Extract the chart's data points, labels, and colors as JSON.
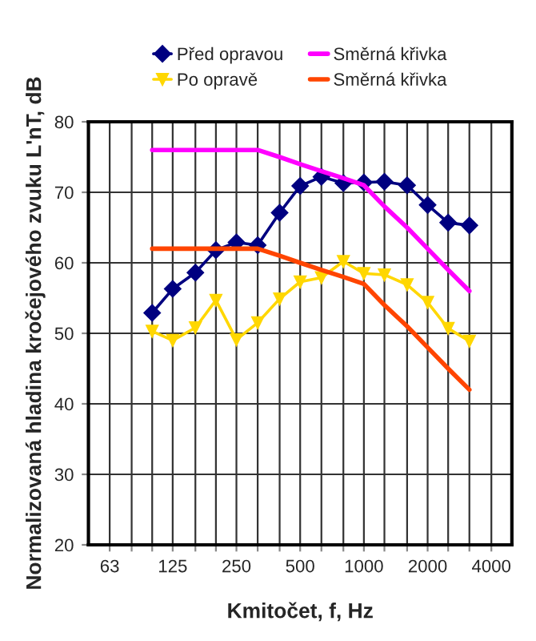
{
  "chart_data": {
    "type": "line",
    "xlabel": "Kmitočet, f, Hz",
    "ylabel": "Normalizovaná hladina kročejového zvuku L'nT, dB",
    "log": "x",
    "x": [
      100,
      125,
      160,
      200,
      250,
      315,
      400,
      500,
      630,
      800,
      1000,
      1250,
      1600,
      2000,
      2500,
      3150
    ],
    "xlim": [
      50,
      5000
    ],
    "xticks": [
      {
        "value": 63,
        "label": "63"
      },
      {
        "value": 80,
        "label": null
      },
      {
        "value": 100,
        "label": null
      },
      {
        "value": 125,
        "label": "125"
      },
      {
        "value": 160,
        "label": null
      },
      {
        "value": 200,
        "label": null
      },
      {
        "value": 250,
        "label": "250"
      },
      {
        "value": 315,
        "label": null
      },
      {
        "value": 400,
        "label": null
      },
      {
        "value": 500,
        "label": "500"
      },
      {
        "value": 630,
        "label": null
      },
      {
        "value": 800,
        "label": null
      },
      {
        "value": 1000,
        "label": "1000"
      },
      {
        "value": 1250,
        "label": null
      },
      {
        "value": 1600,
        "label": null
      },
      {
        "value": 2000,
        "label": "2000"
      },
      {
        "value": 2500,
        "label": null
      },
      {
        "value": 3150,
        "label": null
      },
      {
        "value": 4000,
        "label": "4000"
      }
    ],
    "ylim": [
      20,
      80
    ],
    "yticks": [
      20,
      30,
      40,
      50,
      60,
      70,
      80
    ],
    "grid": true,
    "legend": "top",
    "series": [
      {
        "name": "Před opravou",
        "color": "#000080",
        "marker": "diamond",
        "values": [
          52.9,
          56.3,
          58.6,
          61.8,
          62.9,
          62.5,
          67.1,
          70.9,
          72.2,
          71.3,
          71.4,
          71.5,
          71.0,
          68.2,
          65.7,
          65.3
        ]
      },
      {
        "name": "Po opravě",
        "color": "#ffd700",
        "marker": "triangle",
        "values": [
          50.3,
          49.0,
          50.8,
          54.7,
          49.1,
          51.5,
          54.9,
          57.3,
          57.9,
          60.2,
          58.5,
          58.3,
          56.9,
          54.4,
          50.7,
          48.9
        ]
      },
      {
        "name": "Směrná křivka",
        "color": "#ff00ff",
        "marker": "none",
        "values": [
          76,
          76,
          76,
          76,
          76,
          76,
          75,
          74,
          73,
          72,
          71,
          68,
          65,
          62,
          59,
          56
        ]
      },
      {
        "name": "Směrná křivka",
        "color": "#ff4500",
        "marker": "none",
        "values": [
          62,
          62,
          62,
          62,
          62,
          62,
          61,
          60,
          59,
          58,
          57,
          54,
          51,
          48,
          45,
          42
        ]
      }
    ]
  }
}
